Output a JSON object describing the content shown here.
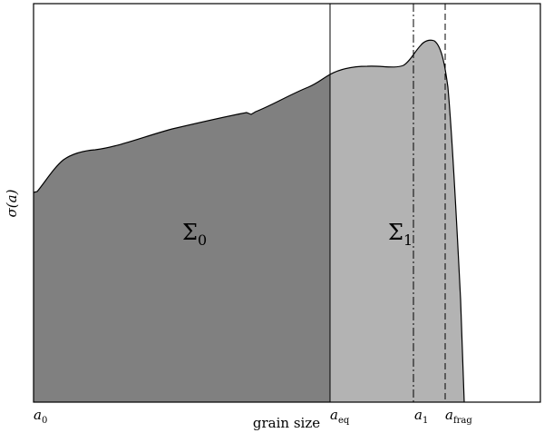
{
  "chart_data": {
    "type": "area",
    "title": "",
    "xlabel": "grain size",
    "ylabel": "σ(a)",
    "grid": false,
    "regions": [
      {
        "label": "Σ",
        "subscript": "0",
        "color": "#808080"
      },
      {
        "label": "Σ",
        "subscript": "1",
        "color": "#b3b3b3"
      }
    ],
    "markers": [
      {
        "label": "a",
        "subscript": "0",
        "line": "none"
      },
      {
        "label": "a",
        "subscript": "eq",
        "line": "solid"
      },
      {
        "label": "a",
        "subscript": "1",
        "line": "dash-dot"
      },
      {
        "label": "a",
        "subscript": "frag",
        "line": "dashed"
      }
    ]
  }
}
